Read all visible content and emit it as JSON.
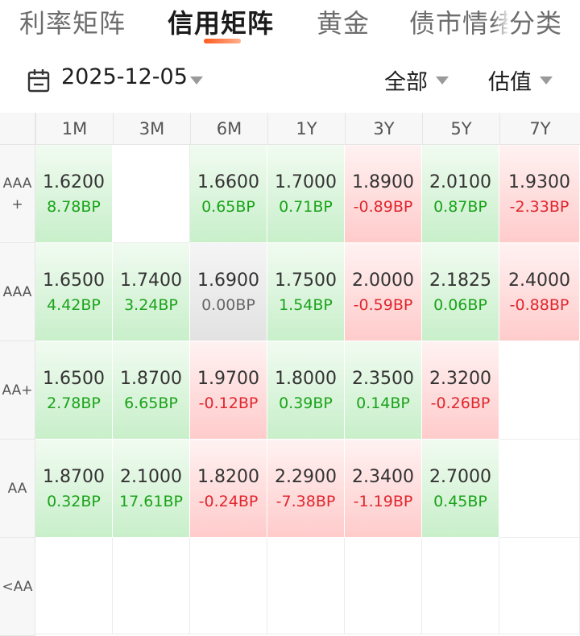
{
  "tabs": [
    {
      "label": "利率矩阵",
      "active": false
    },
    {
      "label": "信用矩阵",
      "active": true
    },
    {
      "label": "黄金",
      "active": false
    },
    {
      "label": "债市情绪",
      "active": false
    },
    {
      "label": "分类",
      "active": false
    }
  ],
  "filters": {
    "date": "2025-12-05",
    "scope": "全部",
    "metric": "估值"
  },
  "colors": {
    "accent": "#ff5a1f",
    "up": "#1aa31a",
    "down": "#e0262d"
  },
  "matrix": {
    "columns": [
      "1M",
      "3M",
      "6M",
      "1Y",
      "3Y",
      "5Y",
      "7Y"
    ],
    "rows": [
      {
        "label": "AAA\n+",
        "cells": [
          {
            "value": "1.6200",
            "change": "8.78BP",
            "dir": "pos"
          },
          {
            "value": "",
            "change": "",
            "dir": "empty"
          },
          {
            "value": "1.6600",
            "change": "0.65BP",
            "dir": "pos"
          },
          {
            "value": "1.7000",
            "change": "0.71BP",
            "dir": "pos"
          },
          {
            "value": "1.8900",
            "change": "-0.89BP",
            "dir": "neg"
          },
          {
            "value": "2.0100",
            "change": "0.87BP",
            "dir": "pos"
          },
          {
            "value": "1.9300",
            "change": "-2.33BP",
            "dir": "neg"
          }
        ]
      },
      {
        "label": "AAA",
        "cells": [
          {
            "value": "1.6500",
            "change": "4.42BP",
            "dir": "pos"
          },
          {
            "value": "1.7400",
            "change": "3.24BP",
            "dir": "pos"
          },
          {
            "value": "1.6900",
            "change": "0.00BP",
            "dir": "flat"
          },
          {
            "value": "1.7500",
            "change": "1.54BP",
            "dir": "pos"
          },
          {
            "value": "2.0000",
            "change": "-0.59BP",
            "dir": "neg"
          },
          {
            "value": "2.1825",
            "change": "0.06BP",
            "dir": "pos"
          },
          {
            "value": "2.4000",
            "change": "-0.88BP",
            "dir": "neg"
          }
        ]
      },
      {
        "label": "AA+",
        "cells": [
          {
            "value": "1.6500",
            "change": "2.78BP",
            "dir": "pos"
          },
          {
            "value": "1.8700",
            "change": "6.65BP",
            "dir": "pos"
          },
          {
            "value": "1.9700",
            "change": "-0.12BP",
            "dir": "neg"
          },
          {
            "value": "1.8000",
            "change": "0.39BP",
            "dir": "pos"
          },
          {
            "value": "2.3500",
            "change": "0.14BP",
            "dir": "pos"
          },
          {
            "value": "2.3200",
            "change": "-0.26BP",
            "dir": "neg"
          },
          {
            "value": "",
            "change": "",
            "dir": "empty"
          }
        ]
      },
      {
        "label": "AA",
        "cells": [
          {
            "value": "1.8700",
            "change": "0.32BP",
            "dir": "pos"
          },
          {
            "value": "2.1000",
            "change": "17.61BP",
            "dir": "pos"
          },
          {
            "value": "1.8200",
            "change": "-0.24BP",
            "dir": "neg"
          },
          {
            "value": "2.2900",
            "change": "-7.38BP",
            "dir": "neg"
          },
          {
            "value": "2.3400",
            "change": "-1.19BP",
            "dir": "neg"
          },
          {
            "value": "2.7000",
            "change": "0.45BP",
            "dir": "pos"
          },
          {
            "value": "",
            "change": "",
            "dir": "empty"
          }
        ]
      },
      {
        "label": "<AA",
        "cells": [
          {
            "value": "",
            "change": "",
            "dir": "empty"
          },
          {
            "value": "",
            "change": "",
            "dir": "empty"
          },
          {
            "value": "",
            "change": "",
            "dir": "empty"
          },
          {
            "value": "",
            "change": "",
            "dir": "empty"
          },
          {
            "value": "",
            "change": "",
            "dir": "empty"
          },
          {
            "value": "",
            "change": "",
            "dir": "empty"
          },
          {
            "value": "",
            "change": "",
            "dir": "empty"
          }
        ]
      }
    ]
  }
}
